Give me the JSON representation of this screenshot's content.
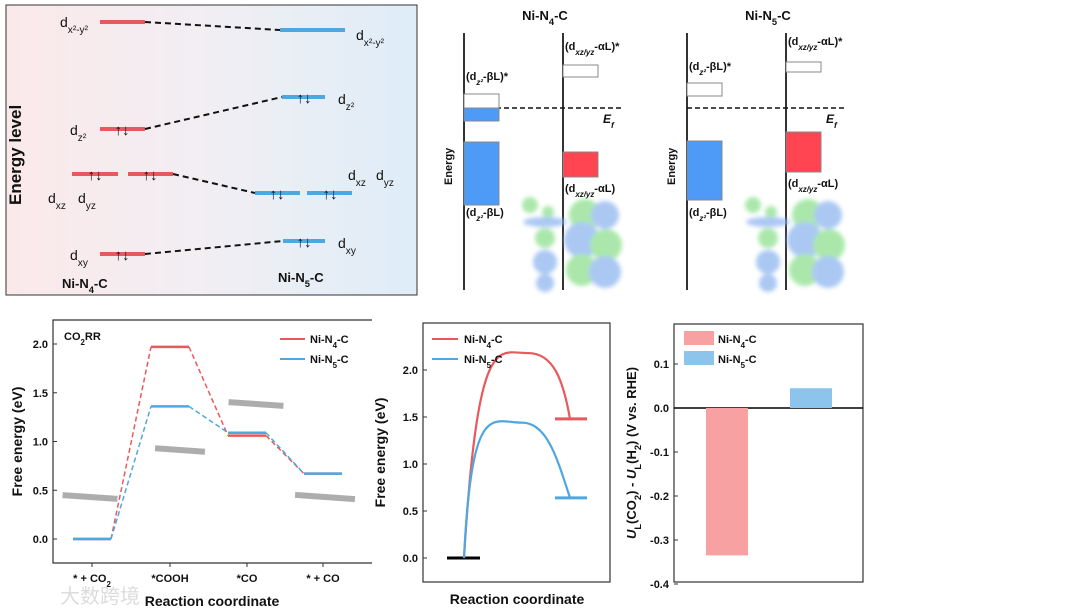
{
  "colors": {
    "n4": "#e8595d",
    "n5": "#4fa7e0",
    "n4_bar": "#f7a1a3",
    "n5_bar": "#8cc4ec",
    "orb_blue": "#4e9af7",
    "orb_red": "#ff4552"
  },
  "panel_a": {
    "ylabel": "Energy level",
    "left_name": {
      "base": "Ni-N",
      "sub": "4",
      "tail": "-C"
    },
    "right_name": {
      "base": "Ni-N",
      "sub": "5",
      "tail": "-C"
    },
    "orbitals": {
      "dx2y2": {
        "base": "d",
        "sub": "x²-y²"
      },
      "dz2": {
        "base": "d",
        "sub": "z²"
      },
      "dxz": {
        "base": "d",
        "sub": "xz"
      },
      "dyz": {
        "base": "d",
        "sub": "yz"
      },
      "dxy": {
        "base": "d",
        "sub": "xy"
      }
    },
    "electron_symbol": "↑↓"
  },
  "panel_b": [
    {
      "title": {
        "base": "Ni-N",
        "sub": "4",
        "tail": "-C"
      }
    },
    {
      "title": {
        "base": "Ni-N",
        "sub": "5",
        "tail": "-C"
      }
    }
  ],
  "panel_b_labels": {
    "ylabel": "Energy",
    "ef": "E",
    "ef_sub": "f",
    "dz2_star": {
      "pre": "(d",
      "sub": "z²",
      "post": "-βL)*"
    },
    "dz2": {
      "pre": "(d",
      "sub": "z²",
      "post": "-βL)"
    },
    "dxz_star": {
      "pre": "(d",
      "sub": "xz/yz",
      "post": "-αL)*"
    },
    "dxz": {
      "pre": "(d",
      "sub": "xz/yz",
      "post": "-αL)"
    }
  },
  "chart_data": [
    {
      "type": "line",
      "title": "CO₂RR",
      "xlabel": "Reaction coordinate",
      "ylabel": "Free energy (eV)",
      "categories": [
        "* + CO₂",
        "*COOH",
        "*CO",
        "* + CO"
      ],
      "ylim": [
        -0.25,
        2.25
      ],
      "yticks": [
        "0.0",
        "0.5",
        "1.0",
        "1.5",
        "2.0"
      ],
      "legend": "top-right",
      "series": [
        {
          "name": "Ni-N4-C",
          "label": {
            "base": "Ni-N",
            "sub": "4",
            "tail": "-C"
          },
          "values": [
            0.0,
            1.97,
            1.06,
            0.67
          ]
        },
        {
          "name": "Ni-N5-C",
          "label": {
            "base": "Ni-N",
            "sub": "5",
            "tail": "-C"
          },
          "values": [
            0.0,
            1.36,
            1.09,
            0.67
          ]
        }
      ]
    },
    {
      "type": "line",
      "xlabel": "Reaction coordinate",
      "ylabel": "Free energy (eV)",
      "ylim": [
        -0.25,
        2.4
      ],
      "yticks": [
        "0.0",
        "0.5",
        "1.0",
        "1.5",
        "2.0"
      ],
      "legend": "top-left",
      "initial": 0.0,
      "series": [
        {
          "name": "Ni-N4-C",
          "label": {
            "base": "Ni-N",
            "sub": "4",
            "tail": "-C"
          },
          "barrier": 2.18,
          "final": 1.48
        },
        {
          "name": "Ni-N5-C",
          "label": {
            "base": "Ni-N",
            "sub": "5",
            "tail": "-C"
          },
          "barrier": 1.44,
          "final": 0.64
        }
      ]
    },
    {
      "type": "bar",
      "ylabel": {
        "u1": "U",
        "s1": "L",
        "p1": "(CO",
        "s2": "2",
        "p2": ") - ",
        "u2": "U",
        "s3": "L",
        "p3": "(H",
        "s4": "2",
        "p4": ") (V vs. RHE)"
      },
      "ylim": [
        -0.4,
        0.2
      ],
      "yticks": [
        "-0.4",
        "-0.3",
        "-0.2",
        "-0.1",
        "0.0",
        "0.1"
      ],
      "legend": "top-left",
      "categories": [
        "Ni-N4-C",
        "Ni-N5-C"
      ],
      "labels": [
        {
          "base": "Ni-N",
          "sub": "4",
          "tail": "-C"
        },
        {
          "base": "Ni-N",
          "sub": "5",
          "tail": "-C"
        }
      ],
      "values": [
        -0.335,
        0.045
      ]
    }
  ],
  "watermark": "大数跨境"
}
